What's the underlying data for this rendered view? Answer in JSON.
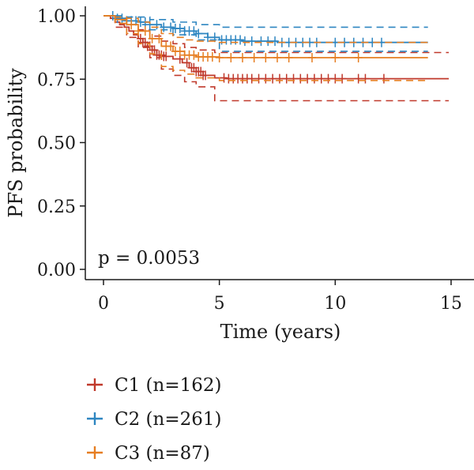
{
  "chart_data": {
    "type": "line",
    "subtype": "kaplan-meier",
    "xlabel": "Time (years)",
    "ylabel": "PFS probability",
    "xlim": [
      0,
      15
    ],
    "ylim": [
      0,
      1
    ],
    "x_ticks": [
      "0",
      "5",
      "10",
      "15"
    ],
    "y_ticks": [
      "0.00",
      "0.25",
      "0.50",
      "0.75",
      "1.00"
    ],
    "annotation": "p = 0.0053",
    "legend_position": "bottom",
    "grid": false,
    "series": [
      {
        "name": "C1 (n=162)",
        "color": "#c0392b",
        "curve": [
          [
            0,
            1.0
          ],
          [
            0.3,
            0.99
          ],
          [
            0.5,
            0.975
          ],
          [
            0.7,
            0.965
          ],
          [
            0.9,
            0.955
          ],
          [
            1.1,
            0.94
          ],
          [
            1.3,
            0.925
          ],
          [
            1.5,
            0.91
          ],
          [
            1.7,
            0.895
          ],
          [
            1.9,
            0.88
          ],
          [
            2.1,
            0.865
          ],
          [
            2.3,
            0.845
          ],
          [
            2.6,
            0.84
          ],
          [
            3.0,
            0.83
          ],
          [
            3.4,
            0.815
          ],
          [
            3.7,
            0.795
          ],
          [
            4.0,
            0.78
          ],
          [
            4.3,
            0.765
          ],
          [
            4.8,
            0.755
          ],
          [
            5.3,
            0.752
          ],
          [
            14.9,
            0.752
          ]
        ],
        "upper": [
          [
            0,
            1.0
          ],
          [
            0.5,
            0.99
          ],
          [
            1.0,
            0.965
          ],
          [
            1.5,
            0.945
          ],
          [
            2.0,
            0.92
          ],
          [
            2.5,
            0.9
          ],
          [
            3.0,
            0.89
          ],
          [
            3.5,
            0.875
          ],
          [
            4.0,
            0.865
          ],
          [
            4.8,
            0.855
          ],
          [
            14.9,
            0.855
          ]
        ],
        "lower": [
          [
            0,
            1.0
          ],
          [
            0.5,
            0.955
          ],
          [
            1.0,
            0.915
          ],
          [
            1.5,
            0.875
          ],
          [
            2.0,
            0.835
          ],
          [
            2.5,
            0.79
          ],
          [
            3.0,
            0.765
          ],
          [
            3.5,
            0.74
          ],
          [
            4.0,
            0.72
          ],
          [
            4.8,
            0.665
          ],
          [
            14.9,
            0.665
          ]
        ],
        "censor_x": [
          1.6,
          1.7,
          1.8,
          1.9,
          2.0,
          2.1,
          2.2,
          2.3,
          2.4,
          2.5,
          2.6,
          2.7,
          3.3,
          3.6,
          3.8,
          3.9,
          4.0,
          4.1,
          4.2,
          4.3,
          4.4,
          5.2,
          5.4,
          5.6,
          5.8,
          6.0,
          6.2,
          6.4,
          6.7,
          7.0,
          7.3,
          7.6,
          7.9,
          8.2,
          8.5,
          8.8,
          9.1,
          9.4,
          9.7,
          10.0,
          10.3,
          11.0,
          11.3,
          12.1
        ]
      },
      {
        "name": "C2 (n=261)",
        "color": "#2e86c1",
        "curve": [
          [
            0,
            1.0
          ],
          [
            0.5,
            0.99
          ],
          [
            1.0,
            0.98
          ],
          [
            1.5,
            0.975
          ],
          [
            2.0,
            0.965
          ],
          [
            2.5,
            0.955
          ],
          [
            3.0,
            0.95
          ],
          [
            3.5,
            0.94
          ],
          [
            4.0,
            0.93
          ],
          [
            4.5,
            0.915
          ],
          [
            5.0,
            0.905
          ],
          [
            6.0,
            0.9
          ],
          [
            7.5,
            0.895
          ],
          [
            14.0,
            0.895
          ]
        ],
        "upper": [
          [
            0,
            1.0
          ],
          [
            1.0,
            0.995
          ],
          [
            2.0,
            0.985
          ],
          [
            3.0,
            0.975
          ],
          [
            4.0,
            0.965
          ],
          [
            5.0,
            0.955
          ],
          [
            14.0,
            0.955
          ]
        ],
        "lower": [
          [
            0,
            1.0
          ],
          [
            1.0,
            0.965
          ],
          [
            2.0,
            0.945
          ],
          [
            3.0,
            0.925
          ],
          [
            4.0,
            0.905
          ],
          [
            5.0,
            0.86
          ],
          [
            14.0,
            0.86
          ]
        ],
        "censor_x": [
          0.4,
          0.6,
          0.8,
          1.0,
          1.2,
          1.4,
          1.6,
          1.8,
          2.0,
          2.3,
          2.6,
          2.9,
          3.1,
          3.3,
          3.5,
          3.7,
          3.9,
          4.1,
          4.5,
          4.8,
          5.1,
          5.3,
          5.5,
          5.7,
          5.9,
          6.1,
          6.4,
          6.8,
          7.1,
          7.4,
          7.7,
          8.0,
          8.3,
          8.6,
          8.9,
          9.2,
          10.0,
          10.4,
          10.8,
          11.2,
          11.6,
          12.0
        ]
      },
      {
        "name": "C3 (n=87)",
        "color": "#e67e22",
        "curve": [
          [
            0,
            1.0
          ],
          [
            0.5,
            0.985
          ],
          [
            1.0,
            0.965
          ],
          [
            1.5,
            0.94
          ],
          [
            2.0,
            0.91
          ],
          [
            2.5,
            0.88
          ],
          [
            3.0,
            0.86
          ],
          [
            3.5,
            0.845
          ],
          [
            4.0,
            0.838
          ],
          [
            5.0,
            0.835
          ],
          [
            14.0,
            0.835
          ]
        ],
        "upper": [
          [
            0,
            1.0
          ],
          [
            0.5,
            0.995
          ],
          [
            1.0,
            0.99
          ],
          [
            1.5,
            0.975
          ],
          [
            2.0,
            0.955
          ],
          [
            2.5,
            0.93
          ],
          [
            3.0,
            0.915
          ],
          [
            3.5,
            0.905
          ],
          [
            4.0,
            0.9
          ],
          [
            5.0,
            0.895
          ],
          [
            14.0,
            0.895
          ]
        ],
        "lower": [
          [
            0,
            1.0
          ],
          [
            0.5,
            0.97
          ],
          [
            1.0,
            0.93
          ],
          [
            1.5,
            0.89
          ],
          [
            2.0,
            0.85
          ],
          [
            2.5,
            0.8
          ],
          [
            3.0,
            0.785
          ],
          [
            3.5,
            0.77
          ],
          [
            4.0,
            0.755
          ],
          [
            5.0,
            0.745
          ],
          [
            14.0,
            0.745
          ]
        ],
        "censor_x": [
          1.2,
          1.5,
          1.8,
          2.1,
          2.4,
          2.7,
          2.9,
          3.1,
          3.3,
          3.5,
          3.7,
          3.9,
          4.1,
          4.3,
          4.5,
          4.7,
          5.0,
          5.5,
          6.0,
          6.5,
          7.0,
          7.5,
          8.0,
          9.0,
          10.0,
          11.0
        ]
      }
    ]
  }
}
